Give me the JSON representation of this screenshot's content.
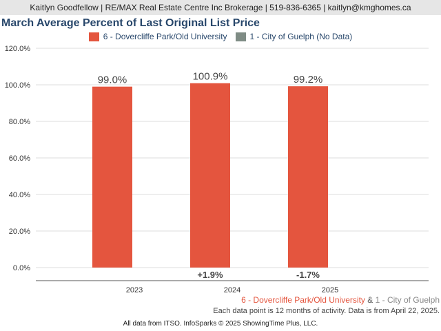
{
  "header": {
    "contact": "Kaitlyn Goodfellow | RE/MAX Real Estate Centre Inc Brokerage | 519-836-6365 | kaitlyn@kmghomes.ca"
  },
  "chart_data": {
    "type": "bar",
    "title": "March Average Percent of Last Original List Price",
    "categories": [
      "2023",
      "2024",
      "2025"
    ],
    "series": [
      {
        "name": "6 - Dovercliffe Park/Old University",
        "values": [
          99.0,
          100.9,
          99.2
        ],
        "color": "#e4553e"
      },
      {
        "name": "1 - City of Guelph (No Data)",
        "values": [
          null,
          null,
          null
        ],
        "color": "#7f8c85"
      }
    ],
    "data_labels": [
      "99.0%",
      "100.9%",
      "99.2%"
    ],
    "change_labels": [
      "",
      "+1.9%",
      "-1.7%"
    ],
    "y_ticks": [
      0,
      20,
      40,
      60,
      80,
      100,
      120
    ],
    "y_tick_labels": [
      "0.0%",
      "20.0%",
      "40.0%",
      "60.0%",
      "80.0%",
      "100.0%",
      "120.0%"
    ],
    "ylim": [
      0,
      120
    ],
    "grid": true,
    "legend_position": "top-center"
  },
  "footer": {
    "series1": "6 - Dovercliffe Park/Old University",
    "amp": "&",
    "series2": "1 - City of Guelph",
    "note": "Each data point is 12 months of activity. Data is from April 22, 2025.",
    "source": "All data from ITSO. InfoSparks © 2025 ShowingTime Plus, LLC."
  }
}
